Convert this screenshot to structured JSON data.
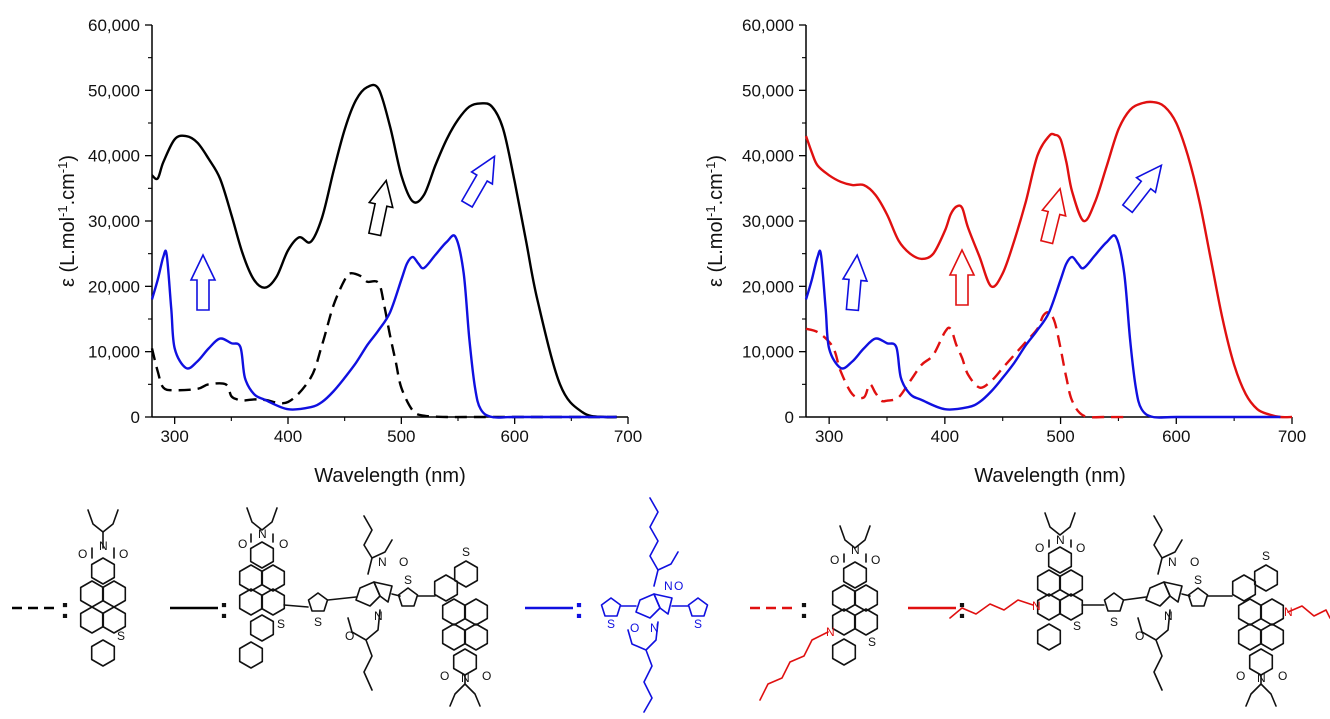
{
  "chart_data": [
    {
      "type": "line",
      "xlabel": "Wavelength (nm)",
      "ylabel": "ε (L.mol-1.cm-1)",
      "xlim": [
        280,
        700
      ],
      "ylim": [
        0,
        60000
      ],
      "xticks": [
        "300",
        "400",
        "500",
        "600",
        "700"
      ],
      "yticks": [
        "0",
        "10,000",
        "20,000",
        "30,000",
        "40,000",
        "50,000",
        "60,000"
      ],
      "series": [
        {
          "style": "dashed",
          "color": "#000000",
          "x": [
            280,
            285,
            290,
            300,
            320,
            330,
            345,
            350,
            355,
            360,
            370,
            380,
            400,
            420,
            430,
            440,
            450,
            455,
            465,
            470,
            480,
            485,
            490,
            495,
            500,
            510,
            520,
            540,
            560,
            600,
            650,
            690
          ],
          "y": [
            10500,
            7000,
            4500,
            4100,
            4300,
            5000,
            5000,
            3200,
            2700,
            2500,
            2700,
            2600,
            2300,
            6000,
            11000,
            17000,
            21000,
            22000,
            21500,
            20700,
            20500,
            17000,
            12500,
            8500,
            4500,
            1000,
            200,
            0,
            0,
            0,
            0,
            0
          ]
        },
        {
          "style": "solid",
          "color": "#000000",
          "x": [
            280,
            285,
            290,
            300,
            310,
            320,
            330,
            340,
            350,
            360,
            370,
            380,
            390,
            400,
            410,
            420,
            430,
            440,
            450,
            460,
            470,
            480,
            490,
            500,
            510,
            520,
            530,
            540,
            550,
            560,
            570,
            580,
            590,
            600,
            610,
            620,
            640,
            660,
            680,
            690
          ],
          "y": [
            37000,
            36500,
            39000,
            42500,
            43000,
            42000,
            39500,
            36500,
            31000,
            25000,
            21000,
            19800,
            21500,
            25500,
            27500,
            26800,
            30500,
            37500,
            44000,
            48500,
            50500,
            50200,
            44500,
            37000,
            33000,
            34000,
            38500,
            42500,
            45500,
            47500,
            48000,
            47500,
            44000,
            36000,
            27000,
            18000,
            5000,
            700,
            0,
            0
          ]
        },
        {
          "style": "solid",
          "color": "#1010e0",
          "x": [
            280,
            285,
            290,
            293,
            297,
            300,
            310,
            320,
            330,
            340,
            350,
            358,
            362,
            370,
            380,
            400,
            420,
            430,
            440,
            450,
            460,
            470,
            480,
            490,
            500,
            505,
            510,
            515,
            520,
            530,
            540,
            548,
            555,
            560,
            565,
            570,
            580,
            600,
            650,
            690
          ],
          "y": [
            18000,
            21000,
            24500,
            24800,
            16500,
            10500,
            7500,
            8500,
            10500,
            12000,
            11300,
            10700,
            6000,
            3500,
            2600,
            1200,
            1500,
            2300,
            3900,
            6000,
            8300,
            11000,
            13300,
            16000,
            21000,
            23500,
            24500,
            23500,
            22800,
            24800,
            26800,
            27500,
            22000,
            12000,
            4500,
            1200,
            0,
            0,
            0,
            0
          ]
        }
      ]
    },
    {
      "type": "line",
      "xlabel": "Wavelength (nm)",
      "ylabel": "ε (L.mol-1.cm-1)",
      "xlim": [
        280,
        700
      ],
      "ylim": [
        0,
        60000
      ],
      "xticks": [
        "300",
        "400",
        "500",
        "600",
        "700"
      ],
      "yticks": [
        "0",
        "10,000",
        "20,000",
        "30,000",
        "40,000",
        "50,000",
        "60,000"
      ],
      "series": [
        {
          "style": "dashed",
          "color": "#e01010",
          "x": [
            280,
            290,
            300,
            305,
            310,
            320,
            330,
            335,
            340,
            345,
            350,
            360,
            370,
            380,
            390,
            400,
            405,
            410,
            415,
            420,
            430,
            440,
            450,
            460,
            470,
            480,
            485,
            490,
            495,
            500,
            505,
            510,
            520,
            540,
            560
          ],
          "y": [
            13500,
            13000,
            11500,
            10000,
            7000,
            3500,
            3000,
            5000,
            3700,
            2500,
            2500,
            3000,
            5500,
            8000,
            9500,
            13000,
            13500,
            11000,
            9000,
            6500,
            4500,
            5500,
            7500,
            9500,
            11500,
            13500,
            15500,
            16000,
            14500,
            10500,
            6000,
            2500,
            200,
            0,
            0
          ]
        },
        {
          "style": "solid",
          "color": "#e01010",
          "x": [
            280,
            285,
            290,
            300,
            310,
            320,
            330,
            340,
            350,
            360,
            370,
            380,
            390,
            400,
            405,
            410,
            415,
            420,
            430,
            440,
            450,
            460,
            470,
            480,
            490,
            495,
            500,
            505,
            510,
            520,
            530,
            540,
            550,
            560,
            570,
            580,
            590,
            600,
            610,
            620,
            630,
            640,
            650,
            660,
            670,
            680,
            690,
            700
          ],
          "y": [
            43000,
            40500,
            38500,
            37000,
            36000,
            35500,
            35500,
            34000,
            31000,
            27000,
            25000,
            24200,
            25000,
            28500,
            31000,
            32200,
            32000,
            29000,
            24500,
            20000,
            22000,
            27000,
            33000,
            40000,
            43000,
            43200,
            42500,
            39000,
            34500,
            30000,
            33000,
            38500,
            44000,
            47000,
            48000,
            48200,
            47500,
            45000,
            40000,
            33000,
            24000,
            15000,
            8000,
            3500,
            1200,
            400,
            0,
            0
          ]
        },
        {
          "style": "solid",
          "color": "#1010e0",
          "x": [
            280,
            285,
            290,
            293,
            297,
            300,
            310,
            320,
            330,
            340,
            350,
            358,
            362,
            370,
            380,
            400,
            420,
            430,
            440,
            450,
            460,
            470,
            480,
            490,
            500,
            505,
            510,
            515,
            520,
            530,
            540,
            548,
            555,
            560,
            565,
            570,
            580,
            600,
            650,
            690
          ],
          "y": [
            18000,
            21000,
            24500,
            24800,
            16500,
            10500,
            7500,
            8500,
            10500,
            12000,
            11300,
            10700,
            6000,
            3500,
            2600,
            1200,
            1500,
            2300,
            3900,
            6000,
            8300,
            11000,
            13300,
            16000,
            21000,
            23500,
            24500,
            23500,
            22800,
            24800,
            26800,
            27500,
            22000,
            12000,
            4500,
            1200,
            0,
            0,
            0,
            0
          ]
        }
      ]
    }
  ],
  "atoms": {
    "O": "O",
    "N": "N",
    "S": "S"
  }
}
